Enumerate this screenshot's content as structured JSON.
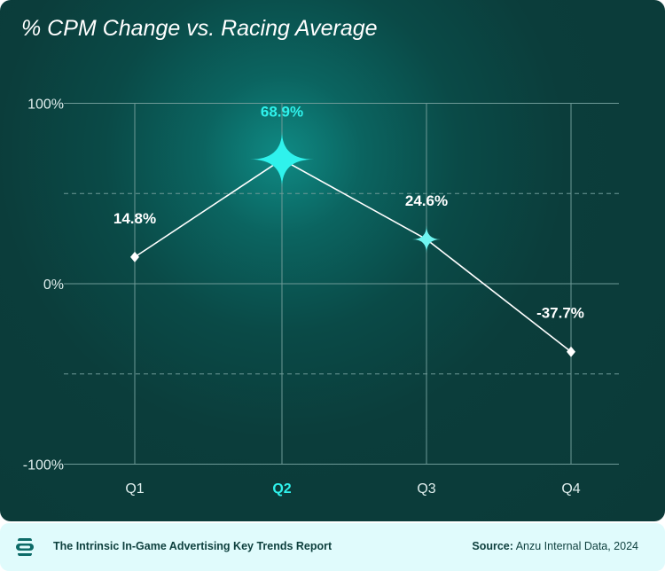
{
  "chart_data": {
    "type": "line",
    "title": "% CPM Change vs. Racing Average",
    "categories": [
      "Q1",
      "Q2",
      "Q3",
      "Q4"
    ],
    "values": [
      14.8,
      68.9,
      24.6,
      -37.7
    ],
    "data_labels": [
      "14.8%",
      "68.9%",
      "24.6%",
      "-37.7%"
    ],
    "highlight": "Q2",
    "ylim": [
      -100,
      100
    ],
    "yticks": [
      {
        "v": 100,
        "label": "100%"
      },
      {
        "v": 0,
        "label": "0%"
      },
      {
        "v": -100,
        "label": "-100%"
      }
    ],
    "dashed_gridlines": [
      50,
      -50
    ],
    "xlabel": "",
    "ylabel": ""
  },
  "colors": {
    "accent": "#2ff2ec",
    "line": "#ffffff",
    "grid": "#6e9a97"
  },
  "footer": {
    "report_title": "The Intrinsic In-Game Advertising Key Trends Report",
    "source_label": "Source:",
    "source_text": " Anzu Internal Data, 2024"
  }
}
